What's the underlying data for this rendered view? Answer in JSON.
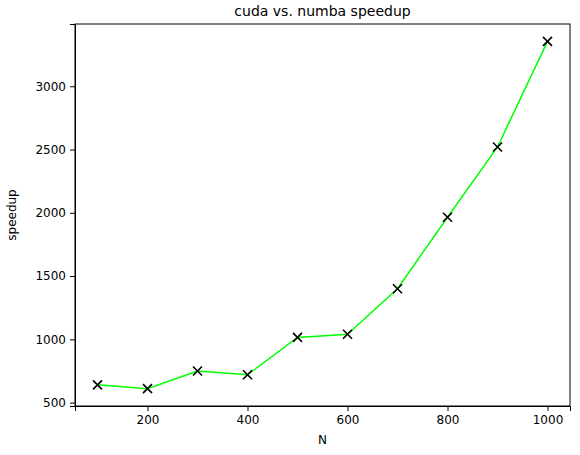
{
  "chart_data": {
    "type": "line",
    "title": "cuda vs. numba speedup",
    "x_label": "N",
    "y_label": "speedup",
    "x": [
      100,
      200,
      300,
      400,
      500,
      600,
      700,
      800,
      900,
      1000
    ],
    "values": [
      640,
      610,
      750,
      720,
      1015,
      1040,
      1400,
      1965,
      2520,
      3355
    ],
    "color": "#00ff00",
    "marker": "x",
    "line_style": "solid",
    "xlim": [
      55,
      1045
    ],
    "xticks": [
      200,
      400,
      600,
      800,
      1000
    ],
    "ylim": [
      473,
      3492
    ],
    "yticks": [
      500,
      1000,
      1500,
      2000,
      2500,
      3000
    ],
    "grid": false
  }
}
